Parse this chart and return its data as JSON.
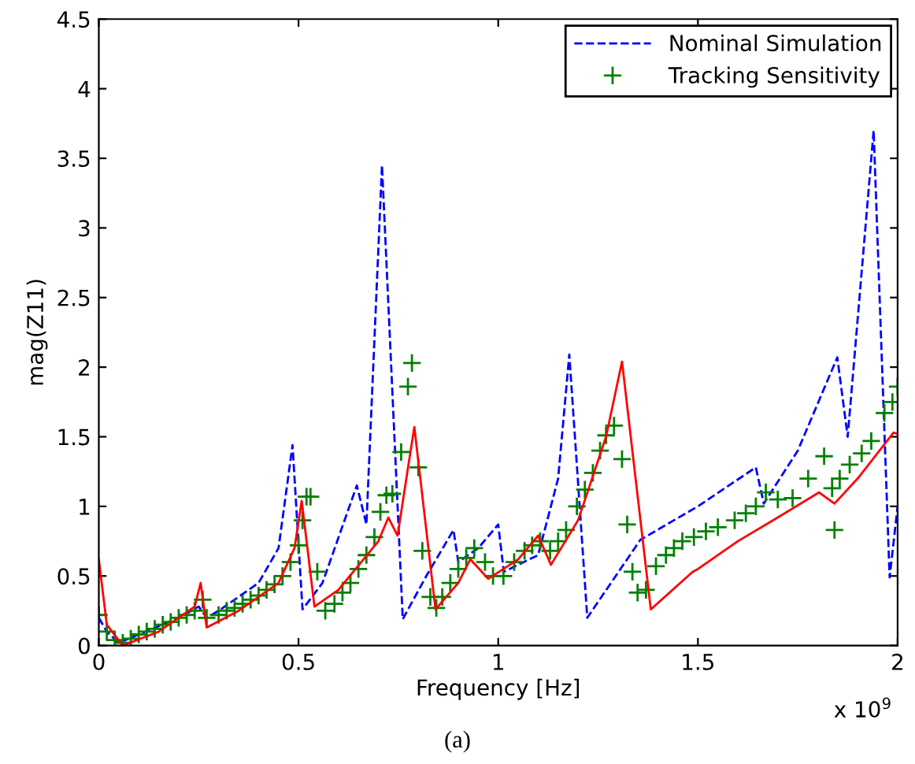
{
  "chart_data": {
    "type": "line",
    "xlabel": "Frequency [Hz]",
    "ylabel": "mag(Z11)",
    "xlim": [
      0,
      2
    ],
    "ylim": [
      0,
      4.5
    ],
    "xticks": [
      0,
      0.5,
      1,
      1.5,
      2
    ],
    "yticks": [
      0,
      0.5,
      1,
      1.5,
      2,
      2.5,
      3,
      3.5,
      4,
      4.5
    ],
    "grid": false,
    "legend": "top right",
    "annotations": [
      "x 10$^{9}$",
      "(a)"
    ],
    "series": [
      {
        "name": "Nominal Simulation",
        "line_style": "dashed",
        "marker": "none",
        "color": "#0000ff",
        "x": [
          0,
          0.02,
          0.05,
          0.1,
          0.2,
          0.25,
          0.27,
          0.3,
          0.4,
          0.45,
          0.485,
          0.51,
          0.56,
          0.646,
          0.67,
          0.709,
          0.761,
          0.82,
          0.888,
          0.9,
          0.95,
          1.0,
          1.014,
          1.1,
          1.15,
          1.178,
          1.223,
          1.356,
          1.5,
          1.645,
          1.665,
          1.75,
          1.849,
          1.875,
          1.94,
          1.98,
          2.0
        ],
        "values": [
          0.2,
          0.1,
          0.02,
          0.08,
          0.2,
          0.28,
          0.2,
          0.25,
          0.45,
          0.7,
          1.44,
          0.26,
          0.45,
          1.15,
          0.87,
          3.45,
          0.19,
          0.5,
          0.83,
          0.6,
          0.7,
          0.87,
          0.53,
          0.65,
          1.2,
          2.09,
          0.2,
          0.76,
          1.0,
          1.28,
          1.02,
          1.4,
          2.07,
          1.5,
          3.7,
          0.49,
          1.0
        ]
      },
      {
        "name": "Tracking Sensitivity",
        "type": "scatter",
        "marker": "cross",
        "color": "#008000",
        "x": [
          0,
          0.02,
          0.04,
          0.06,
          0.08,
          0.1,
          0.12,
          0.14,
          0.16,
          0.18,
          0.2,
          0.22,
          0.24,
          0.26,
          0.27,
          0.3,
          0.32,
          0.34,
          0.36,
          0.38,
          0.4,
          0.42,
          0.44,
          0.46,
          0.48,
          0.5,
          0.51,
          0.52,
          0.53,
          0.547,
          0.567,
          0.59,
          0.61,
          0.63,
          0.65,
          0.67,
          0.69,
          0.705,
          0.72,
          0.735,
          0.757,
          0.774,
          0.784,
          0.8,
          0.81,
          0.83,
          0.845,
          0.86,
          0.88,
          0.9,
          0.92,
          0.94,
          0.967,
          0.987,
          1.013,
          1.04,
          1.066,
          1.085,
          1.105,
          1.13,
          1.15,
          1.17,
          1.197,
          1.217,
          1.237,
          1.255,
          1.27,
          1.29,
          1.31,
          1.323,
          1.336,
          1.349,
          1.37,
          1.395,
          1.42,
          1.44,
          1.461,
          1.49,
          1.52,
          1.55,
          1.592,
          1.62,
          1.645,
          1.67,
          1.7,
          1.737,
          1.776,
          1.816,
          1.836,
          1.842,
          1.855,
          1.88,
          1.91,
          1.934,
          1.967,
          1.987,
          2.0
        ],
        "values": [
          0.22,
          0.1,
          0.04,
          0.02,
          0.05,
          0.08,
          0.1,
          0.12,
          0.15,
          0.17,
          0.2,
          0.22,
          0.25,
          0.33,
          0.2,
          0.22,
          0.25,
          0.27,
          0.3,
          0.33,
          0.36,
          0.4,
          0.44,
          0.5,
          0.6,
          0.72,
          0.9,
          1.07,
          1.07,
          0.53,
          0.25,
          0.3,
          0.38,
          0.45,
          0.55,
          0.65,
          0.78,
          0.96,
          1.08,
          1.09,
          1.39,
          1.86,
          2.03,
          1.28,
          0.68,
          0.35,
          0.27,
          0.35,
          0.45,
          0.55,
          0.63,
          0.7,
          0.6,
          0.5,
          0.5,
          0.6,
          0.68,
          0.72,
          0.75,
          0.68,
          0.75,
          0.83,
          1.0,
          1.12,
          1.24,
          1.4,
          1.51,
          1.58,
          1.34,
          0.87,
          0.53,
          0.38,
          0.4,
          0.57,
          0.65,
          0.7,
          0.75,
          0.78,
          0.82,
          0.85,
          0.9,
          0.95,
          1.0,
          1.1,
          1.05,
          1.06,
          1.2,
          1.36,
          1.13,
          0.83,
          1.2,
          1.3,
          1.38,
          1.47,
          1.67,
          1.75,
          1.86
        ]
      },
      {
        "line_style": "solid",
        "marker": "none",
        "color": "#ff0000",
        "x": [
          0,
          0.02,
          0.06,
          0.15,
          0.24,
          0.255,
          0.27,
          0.35,
          0.45,
          0.49,
          0.508,
          0.54,
          0.6,
          0.7,
          0.725,
          0.748,
          0.77,
          0.79,
          0.843,
          0.9,
          0.93,
          0.975,
          1.05,
          1.1,
          1.132,
          1.2,
          1.27,
          1.31,
          1.382,
          1.487,
          1.5,
          1.6,
          1.7,
          1.803,
          1.842,
          1.9,
          1.99,
          2.0
        ],
        "values": [
          0.62,
          0.15,
          0.0,
          0.1,
          0.28,
          0.45,
          0.13,
          0.25,
          0.45,
          0.7,
          1.04,
          0.28,
          0.4,
          0.75,
          0.92,
          0.79,
          1.2,
          1.57,
          0.26,
          0.45,
          0.62,
          0.48,
          0.62,
          0.79,
          0.58,
          0.9,
          1.5,
          2.04,
          0.26,
          0.53,
          0.55,
          0.75,
          0.92,
          1.1,
          1.02,
          1.2,
          1.53,
          1.52
        ]
      }
    ]
  }
}
